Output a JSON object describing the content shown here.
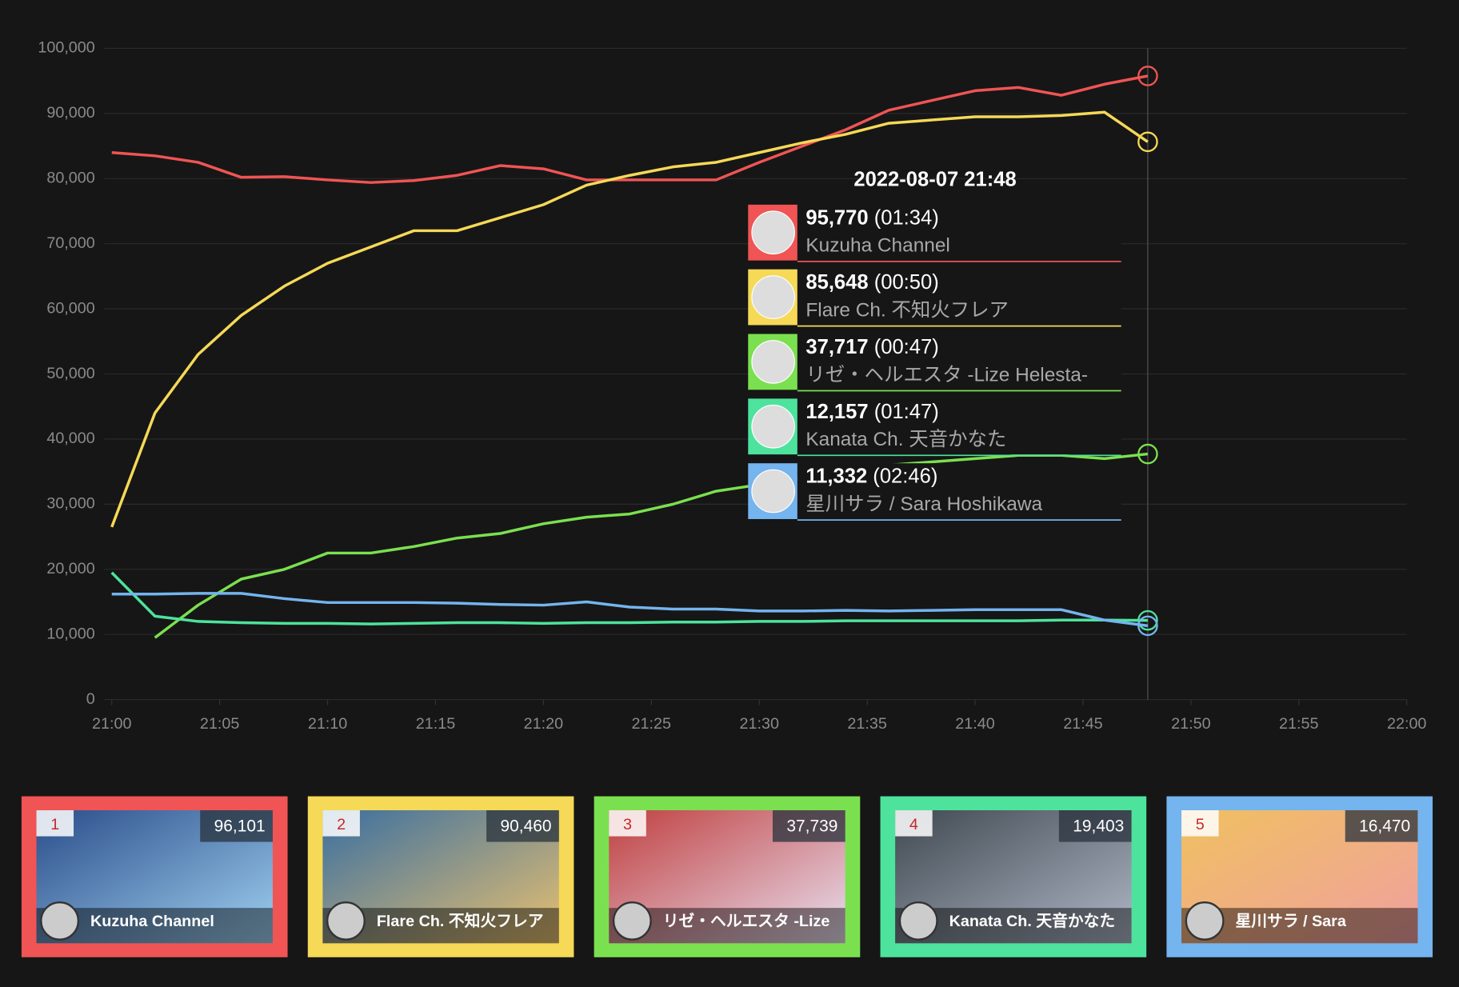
{
  "chart_data": {
    "type": "line",
    "x": [
      "21:00",
      "21:02",
      "21:04",
      "21:06",
      "21:08",
      "21:10",
      "21:12",
      "21:14",
      "21:16",
      "21:18",
      "21:20",
      "21:22",
      "21:24",
      "21:26",
      "21:28",
      "21:30",
      "21:32",
      "21:34",
      "21:36",
      "21:38",
      "21:40",
      "21:42",
      "21:44",
      "21:46",
      "21:48"
    ],
    "xlim": [
      "21:00",
      "22:00"
    ],
    "xticks": [
      "21:00",
      "21:05",
      "21:10",
      "21:15",
      "21:20",
      "21:25",
      "21:30",
      "21:35",
      "21:40",
      "21:45",
      "21:50",
      "21:55",
      "22:00"
    ],
    "ylim": [
      0,
      100000
    ],
    "yticks": [
      0,
      {
        "value": 10000,
        "label": "10,000"
      },
      {
        "value": 20000,
        "label": "20,000"
      },
      {
        "value": 30000,
        "label": "30,000"
      },
      {
        "value": 40000,
        "label": "40,000"
      },
      {
        "value": 50000,
        "label": "50,000"
      },
      {
        "value": 60000,
        "label": "60,000"
      },
      {
        "value": 70000,
        "label": "70,000"
      },
      {
        "value": 80000,
        "label": "80,000"
      },
      {
        "value": 90000,
        "label": "90,000"
      },
      {
        "value": 100000,
        "label": "100,000"
      }
    ],
    "grid": true,
    "series": [
      {
        "name": "Kuzuha Channel",
        "color": "#f05454",
        "values": [
          84000,
          83500,
          82500,
          80200,
          80300,
          79800,
          79400,
          79700,
          80500,
          82000,
          81500,
          79800,
          79800,
          79800,
          79800,
          82500,
          85000,
          87500,
          90500,
          92000,
          93500,
          94000,
          92800,
          94500,
          95770
        ]
      },
      {
        "name": "Flare Ch. 不知火フレア",
        "color": "#f5d957",
        "values": [
          26500,
          44000,
          53000,
          59000,
          63500,
          67000,
          69500,
          72000,
          72000,
          74000,
          76000,
          79000,
          80500,
          81800,
          82500,
          84000,
          85500,
          86800,
          88500,
          89000,
          89500,
          89500,
          89700,
          90200,
          85648
        ]
      },
      {
        "name": "リゼ・ヘルエスタ -Lize Helesta-",
        "color": "#7be04f",
        "values": [
          null,
          9500,
          14500,
          18500,
          20000,
          22500,
          22500,
          23500,
          24800,
          25500,
          27000,
          28000,
          28500,
          30000,
          32000,
          33000,
          34000,
          35000,
          36000,
          36500,
          37000,
          37500,
          37500,
          37000,
          37717
        ]
      },
      {
        "name": "Kanata Ch. 天音かなた",
        "color": "#4de39c",
        "values": [
          19500,
          12800,
          12000,
          11800,
          11700,
          11700,
          11600,
          11700,
          11800,
          11800,
          11700,
          11800,
          11800,
          11900,
          11900,
          12000,
          12000,
          12100,
          12100,
          12100,
          12100,
          12100,
          12200,
          12200,
          12157
        ]
      },
      {
        "name": "星川サラ / Sara Hoshikawa",
        "color": "#74b4ef",
        "values": [
          16200,
          16200,
          16300,
          16300,
          15500,
          14900,
          14900,
          14900,
          14800,
          14600,
          14500,
          15000,
          14200,
          13900,
          13900,
          13600,
          13600,
          13700,
          13600,
          13700,
          13800,
          13800,
          13800,
          12200,
          11332
        ]
      }
    ],
    "tooltip": {
      "title": "2022-08-07 21:48",
      "entries": [
        {
          "value": "95,770",
          "duration": "(01:34)"
        },
        {
          "value": "85,648",
          "duration": "(00:50)"
        },
        {
          "value": "37,717",
          "duration": "(00:47)"
        },
        {
          "value": "12,157",
          "duration": "(01:47)"
        },
        {
          "value": "11,332",
          "duration": "(02:46)"
        }
      ]
    },
    "cards": [
      {
        "rank": "1",
        "count": "96,101",
        "name": "Kuzuha Channel"
      },
      {
        "rank": "2",
        "count": "90,460",
        "name": "Flare Ch. 不知火フレア"
      },
      {
        "rank": "3",
        "count": "37,739",
        "name": "リゼ・ヘルエスタ -Lize"
      },
      {
        "rank": "4",
        "count": "19,403",
        "name": "Kanata Ch. 天音かなた"
      },
      {
        "rank": "5",
        "count": "16,470",
        "name": "星川サラ / Sara"
      }
    ]
  }
}
